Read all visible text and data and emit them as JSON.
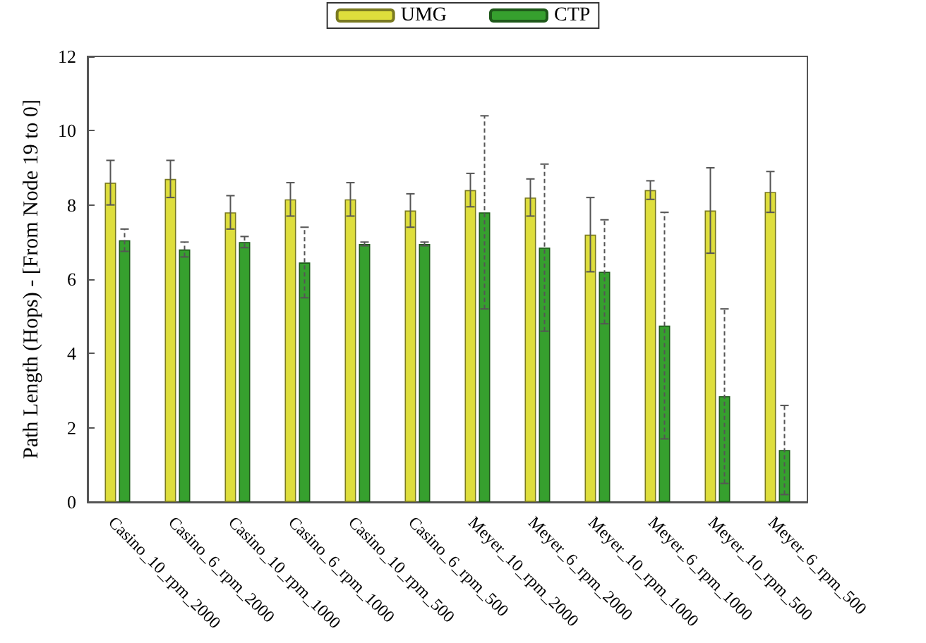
{
  "chart_data": {
    "type": "bar",
    "ylabel": "Path Length (Hops) - [From Node 19 to 0]",
    "categories": [
      "Casino_10_rpm_2000",
      "Casino_6_rpm_2000",
      "Casino_10_rpm_1000",
      "Casino_6_rpm_1000",
      "Casino_10_rpm_500",
      "Casino_6_rpm_500",
      "Meyer_10_rpm_2000",
      "Meyer_6_rpm_2000",
      "Meyer_10_rpm_1000",
      "Meyer_6_rpm_1000",
      "Meyer_10_rpm_500",
      "Meyer_6_rpm_500"
    ],
    "series": [
      {
        "name": "UMG",
        "color": "#dede3c",
        "line_style": "solid",
        "values": [
          8.6,
          8.7,
          7.8,
          8.15,
          8.15,
          7.85,
          8.4,
          8.2,
          7.2,
          8.4,
          7.85,
          8.35
        ],
        "errors": [
          0.6,
          0.5,
          0.45,
          0.45,
          0.45,
          0.45,
          0.45,
          0.5,
          1.0,
          0.25,
          1.15,
          0.55
        ]
      },
      {
        "name": "CTP",
        "color": "#36a02e",
        "line_style": "dashed",
        "values": [
          7.05,
          6.8,
          7.0,
          6.45,
          6.95,
          6.95,
          7.8,
          6.85,
          6.2,
          4.75,
          2.85,
          1.4
        ],
        "errors": [
          0.3,
          0.2,
          0.15,
          0.95,
          0.05,
          0.05,
          2.6,
          2.25,
          1.4,
          3.05,
          2.35,
          1.2
        ]
      }
    ],
    "ylim": [
      0,
      12
    ],
    "yticks": [
      0,
      2,
      4,
      6,
      8,
      10,
      12
    ],
    "grid": false,
    "legend": "top"
  }
}
